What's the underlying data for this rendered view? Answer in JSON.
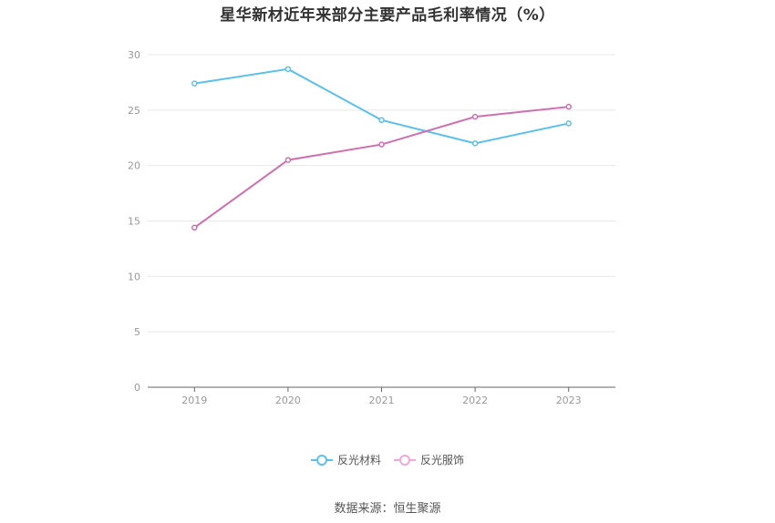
{
  "chart_data": {
    "type": "line",
    "title": "星华新材近年来部分主要产品毛利率情况（%）",
    "categories": [
      "2019",
      "2020",
      "2021",
      "2022",
      "2023"
    ],
    "series": [
      {
        "name": "反光材料",
        "values": [
          27.4,
          28.7,
          24.1,
          22.0,
          23.8
        ],
        "color": "#5bc0eb"
      },
      {
        "name": "反光服饰",
        "values": [
          14.4,
          20.5,
          21.9,
          24.4,
          25.3
        ],
        "color": "#cf6fb1"
      }
    ],
    "yticks": [
      "0",
      "5",
      "10",
      "15",
      "20",
      "25",
      "30"
    ],
    "ylim": [
      0,
      30
    ],
    "grid": true,
    "legend_position": "bottom",
    "source": "数据来源：恒生聚源"
  }
}
